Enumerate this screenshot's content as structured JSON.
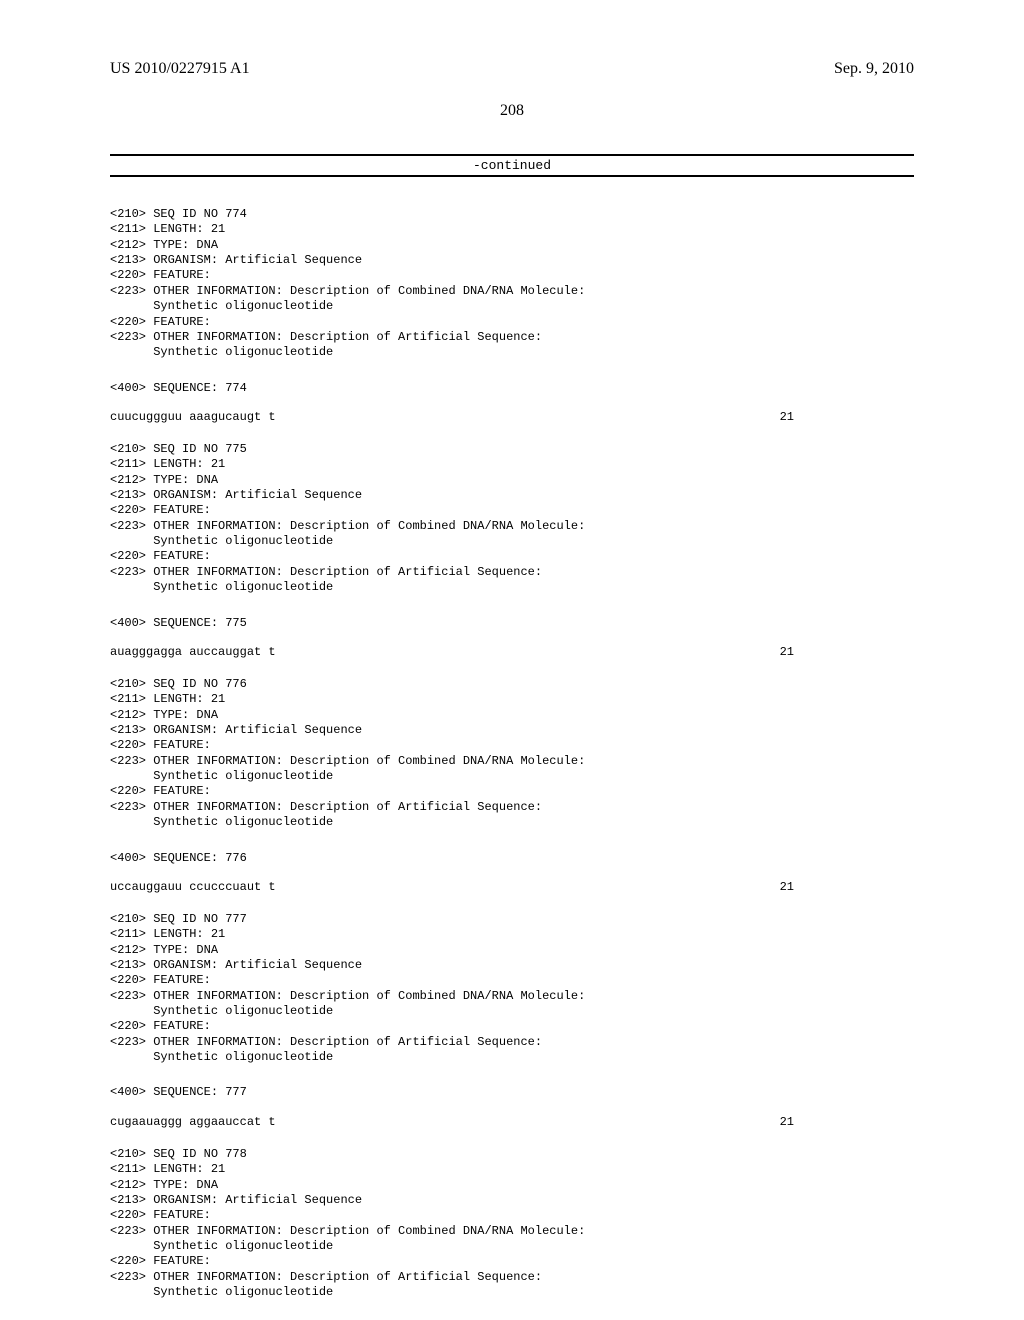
{
  "header": {
    "publication_number": "US 2010/0227915 A1",
    "publication_date": "Sep. 9, 2010"
  },
  "page_number": "208",
  "continued_label": "-continued",
  "entries": [
    {
      "seq_id": "<210> SEQ ID NO 774",
      "length": "<211> LENGTH: 21",
      "type": "<212> TYPE: DNA",
      "organism": "<213> ORGANISM: Artificial Sequence",
      "feature1": "<220> FEATURE:",
      "other1a": "<223> OTHER INFORMATION: Description of Combined DNA/RNA Molecule:",
      "other1b": "      Synthetic oligonucleotide",
      "feature2": "<220> FEATURE:",
      "other2a": "<223> OTHER INFORMATION: Description of Artificial Sequence:",
      "other2b": "      Synthetic oligonucleotide",
      "seq_label": "<400> SEQUENCE: 774",
      "sequence": "cuucuggguu aaagucaugt t",
      "seq_len": "21"
    },
    {
      "seq_id": "<210> SEQ ID NO 775",
      "length": "<211> LENGTH: 21",
      "type": "<212> TYPE: DNA",
      "organism": "<213> ORGANISM: Artificial Sequence",
      "feature1": "<220> FEATURE:",
      "other1a": "<223> OTHER INFORMATION: Description of Combined DNA/RNA Molecule:",
      "other1b": "      Synthetic oligonucleotide",
      "feature2": "<220> FEATURE:",
      "other2a": "<223> OTHER INFORMATION: Description of Artificial Sequence:",
      "other2b": "      Synthetic oligonucleotide",
      "seq_label": "<400> SEQUENCE: 775",
      "sequence": "auagggagga auccauggat t",
      "seq_len": "21"
    },
    {
      "seq_id": "<210> SEQ ID NO 776",
      "length": "<211> LENGTH: 21",
      "type": "<212> TYPE: DNA",
      "organism": "<213> ORGANISM: Artificial Sequence",
      "feature1": "<220> FEATURE:",
      "other1a": "<223> OTHER INFORMATION: Description of Combined DNA/RNA Molecule:",
      "other1b": "      Synthetic oligonucleotide",
      "feature2": "<220> FEATURE:",
      "other2a": "<223> OTHER INFORMATION: Description of Artificial Sequence:",
      "other2b": "      Synthetic oligonucleotide",
      "seq_label": "<400> SEQUENCE: 776",
      "sequence": "uccauggauu ccucccuaut t",
      "seq_len": "21"
    },
    {
      "seq_id": "<210> SEQ ID NO 777",
      "length": "<211> LENGTH: 21",
      "type": "<212> TYPE: DNA",
      "organism": "<213> ORGANISM: Artificial Sequence",
      "feature1": "<220> FEATURE:",
      "other1a": "<223> OTHER INFORMATION: Description of Combined DNA/RNA Molecule:",
      "other1b": "      Synthetic oligonucleotide",
      "feature2": "<220> FEATURE:",
      "other2a": "<223> OTHER INFORMATION: Description of Artificial Sequence:",
      "other2b": "      Synthetic oligonucleotide",
      "seq_label": "<400> SEQUENCE: 777",
      "sequence": "cugaauaggg aggaauccat t",
      "seq_len": "21"
    },
    {
      "seq_id": "<210> SEQ ID NO 778",
      "length": "<211> LENGTH: 21",
      "type": "<212> TYPE: DNA",
      "organism": "<213> ORGANISM: Artificial Sequence",
      "feature1": "<220> FEATURE:",
      "other1a": "<223> OTHER INFORMATION: Description of Combined DNA/RNA Molecule:",
      "other1b": "      Synthetic oligonucleotide",
      "feature2": "<220> FEATURE:",
      "other2a": "<223> OTHER INFORMATION: Description of Artificial Sequence:",
      "other2b": "      Synthetic oligonucleotide",
      "seq_label": "",
      "sequence": "",
      "seq_len": ""
    }
  ]
}
